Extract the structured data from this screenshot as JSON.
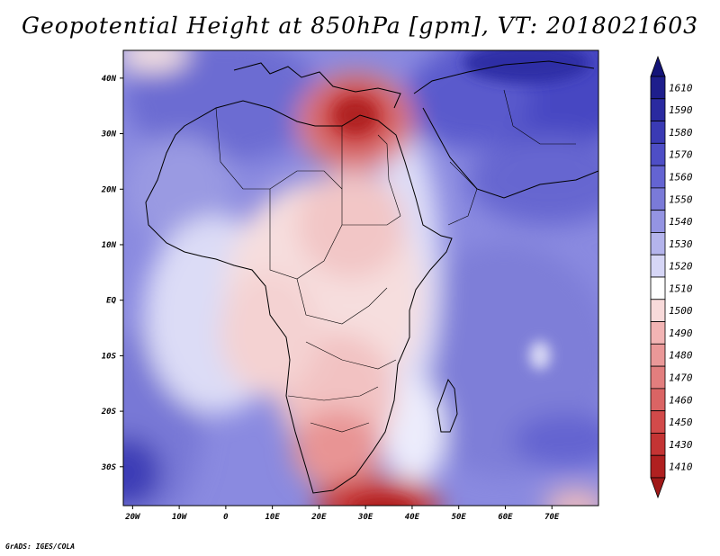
{
  "title": "Geopotential Height at 850hPa [gpm], VT: 2018021603",
  "credit": "GrADS: IGES/COLA",
  "map": {
    "extent": {
      "lon_min": -22,
      "lon_max": 80,
      "lat_min": -37,
      "lat_max": 45
    },
    "lon_ticks": [
      {
        "value": -20,
        "label": "20W"
      },
      {
        "value": -10,
        "label": "10W"
      },
      {
        "value": 0,
        "label": "0"
      },
      {
        "value": 10,
        "label": "10E"
      },
      {
        "value": 20,
        "label": "20E"
      },
      {
        "value": 30,
        "label": "30E"
      },
      {
        "value": 40,
        "label": "40E"
      },
      {
        "value": 50,
        "label": "50E"
      },
      {
        "value": 60,
        "label": "60E"
      },
      {
        "value": 70,
        "label": "70E"
      }
    ],
    "lat_ticks": [
      {
        "value": 40,
        "label": "40N"
      },
      {
        "value": 30,
        "label": "30N"
      },
      {
        "value": 20,
        "label": "20N"
      },
      {
        "value": 10,
        "label": "10N"
      },
      {
        "value": 0,
        "label": "EQ"
      },
      {
        "value": -10,
        "label": "10S"
      },
      {
        "value": -20,
        "label": "20S"
      },
      {
        "value": -30,
        "label": "30S"
      }
    ]
  },
  "colorbar": {
    "levels": [
      {
        "label": "1610",
        "color": "#1e1e8c"
      },
      {
        "label": "1590",
        "color": "#2a2aa0"
      },
      {
        "label": "1580",
        "color": "#3a3ab4"
      },
      {
        "label": "1570",
        "color": "#4e4ec6"
      },
      {
        "label": "1560",
        "color": "#6464d2"
      },
      {
        "label": "1550",
        "color": "#7a7ad8"
      },
      {
        "label": "1540",
        "color": "#9494e2"
      },
      {
        "label": "1530",
        "color": "#b4b4ec"
      },
      {
        "label": "1520",
        "color": "#d6d6f6"
      },
      {
        "label": "1510",
        "color": "#ffffff"
      },
      {
        "label": "1500",
        "color": "#f8dada"
      },
      {
        "label": "1490",
        "color": "#f2b4b4"
      },
      {
        "label": "1480",
        "color": "#ea9898"
      },
      {
        "label": "1470",
        "color": "#e27e7e"
      },
      {
        "label": "1460",
        "color": "#da6464"
      },
      {
        "label": "1450",
        "color": "#d24a4a"
      },
      {
        "label": "1430",
        "color": "#c43434"
      },
      {
        "label": "1410",
        "color": "#b02020"
      }
    ],
    "top_arrow_color": "#141478",
    "bottom_arrow_color": "#a01818"
  }
}
